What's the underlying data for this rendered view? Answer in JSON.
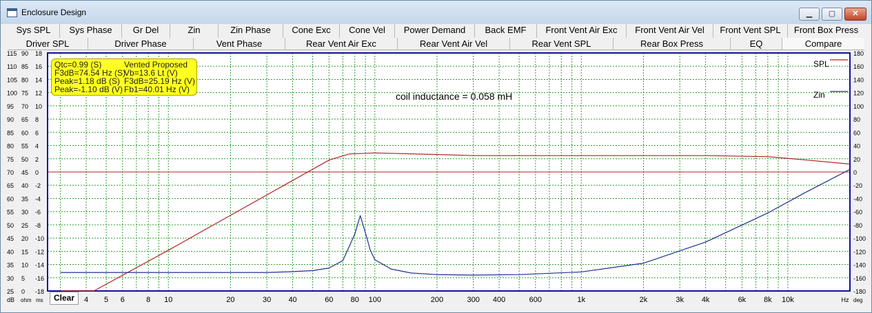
{
  "window": {
    "title": "Enclosure Design",
    "min_label": "▁",
    "max_label": "▢",
    "close_label": "✕"
  },
  "tabs_row1": [
    "Sys SPL",
    "Sys Phase",
    "Gr Del",
    "Zin",
    "Zin Phase",
    "Cone Exc",
    "Cone Vel",
    "Power Demand",
    "Back EMF",
    "Front Vent Air Exc",
    "Front Vent Air Vel",
    "Front Vent SPL",
    "Front Box Press"
  ],
  "tabs_row2": [
    "Driver SPL",
    "Driver Phase",
    "Vent Phase",
    "Rear Vent Air Exc",
    "Rear Vent Air Vel",
    "Rear Vent SPL",
    "Rear Box Press",
    "EQ",
    "Compare"
  ],
  "clear_label": "Clear",
  "info": {
    "qtc": "Qtc=0.99 (S)",
    "model": "Vented Proposed",
    "f3db": "F3dB=74.54 Hz (S)",
    "vb": "Vb=13.6 Lt (V)",
    "peak1": "Peak=1.18 dB (S)",
    "f3db_v": "F3dB=25.19 Hz (V)",
    "peak2": "Peak=-1.10 dB (V)",
    "fb": "Fb1=40.01 Hz (V)"
  },
  "annotation": "coil inductance = 0.058 mH",
  "colors": {
    "spl": "#b22222",
    "zin": "#1f2f8f",
    "grid": "#2e9e2e",
    "frame": "#1010a0",
    "ref_line": "#b22222"
  },
  "chart_data": {
    "type": "line",
    "x_scale": "log",
    "xlim": [
      2.6,
      20000
    ],
    "x_tick_labels": [
      "3",
      "4",
      "5",
      "6",
      "8",
      "10",
      "20",
      "30",
      "40",
      "60",
      "80",
      "100",
      "200",
      "300",
      "400",
      "600",
      "1k",
      "2k",
      "3k",
      "4k",
      "6k",
      "8k",
      "10k"
    ],
    "x_tick_values": [
      3,
      4,
      5,
      6,
      8,
      10,
      20,
      30,
      40,
      60,
      80,
      100,
      200,
      300,
      400,
      600,
      1000,
      2000,
      3000,
      4000,
      6000,
      8000,
      10000
    ],
    "x_unit_label": "Hz",
    "left_axes": {
      "dB": [
        "115",
        "110",
        "105",
        "100",
        "95",
        "90",
        "85",
        "80",
        "75",
        "70",
        "65",
        "60",
        "55",
        "50",
        "45",
        "40",
        "35",
        "30",
        "25"
      ],
      "ohm": [
        "90",
        "85",
        "80",
        "75",
        "70",
        "65",
        "60",
        "55",
        "50",
        "45",
        "40",
        "35",
        "30",
        "25",
        "20",
        "15",
        "10",
        "5",
        "0"
      ],
      "ms": [
        "18",
        "16",
        "14",
        "12",
        "10",
        "8",
        "6",
        "4",
        "2",
        "0",
        "-2",
        "-4",
        "-6",
        "-8",
        "-10",
        "-12",
        "-14",
        "-16",
        "-18"
      ],
      "units": [
        "dB",
        "ohm",
        "ms"
      ]
    },
    "right_axis": {
      "ticks": [
        "180",
        "160",
        "140",
        "120",
        "100",
        "80",
        "60",
        "40",
        "20",
        "0",
        "-20",
        "-40",
        "-60",
        "-80",
        "-100",
        "-120",
        "-140",
        "-160",
        "-180"
      ],
      "unit": "deg"
    },
    "ylim_db": [
      25,
      115
    ],
    "reference_line_db": 70,
    "series": [
      {
        "name": "SPL",
        "axis": "dB",
        "x": [
          3,
          4.35,
          10,
          20,
          30,
          40,
          60,
          75,
          100,
          200,
          300,
          400,
          1000,
          2000,
          4000,
          8000,
          12000,
          20000
        ],
        "y": [
          25,
          25,
          40.4,
          53.6,
          61.3,
          66.8,
          74.5,
          76.8,
          77.2,
          76.6,
          76.2,
          76.2,
          76.2,
          76.2,
          76.2,
          75.8,
          74.6,
          73.0
        ]
      },
      {
        "name": "Zin",
        "axis": "ohm",
        "x": [
          3,
          10,
          20,
          30,
          40,
          50,
          60,
          70,
          80,
          85,
          90,
          95,
          100,
          120,
          150,
          200,
          300,
          500,
          1000,
          2000,
          4000,
          8000,
          12000,
          20000
        ],
        "y": [
          7.0,
          7.0,
          7.0,
          7.0,
          7.3,
          7.7,
          8.7,
          11.5,
          21.5,
          28.5,
          22.0,
          15.5,
          11.8,
          8.3,
          6.8,
          6.2,
          6.0,
          6.2,
          7.2,
          10.5,
          18.5,
          29.5,
          37.0,
          46.0
        ]
      }
    ]
  }
}
